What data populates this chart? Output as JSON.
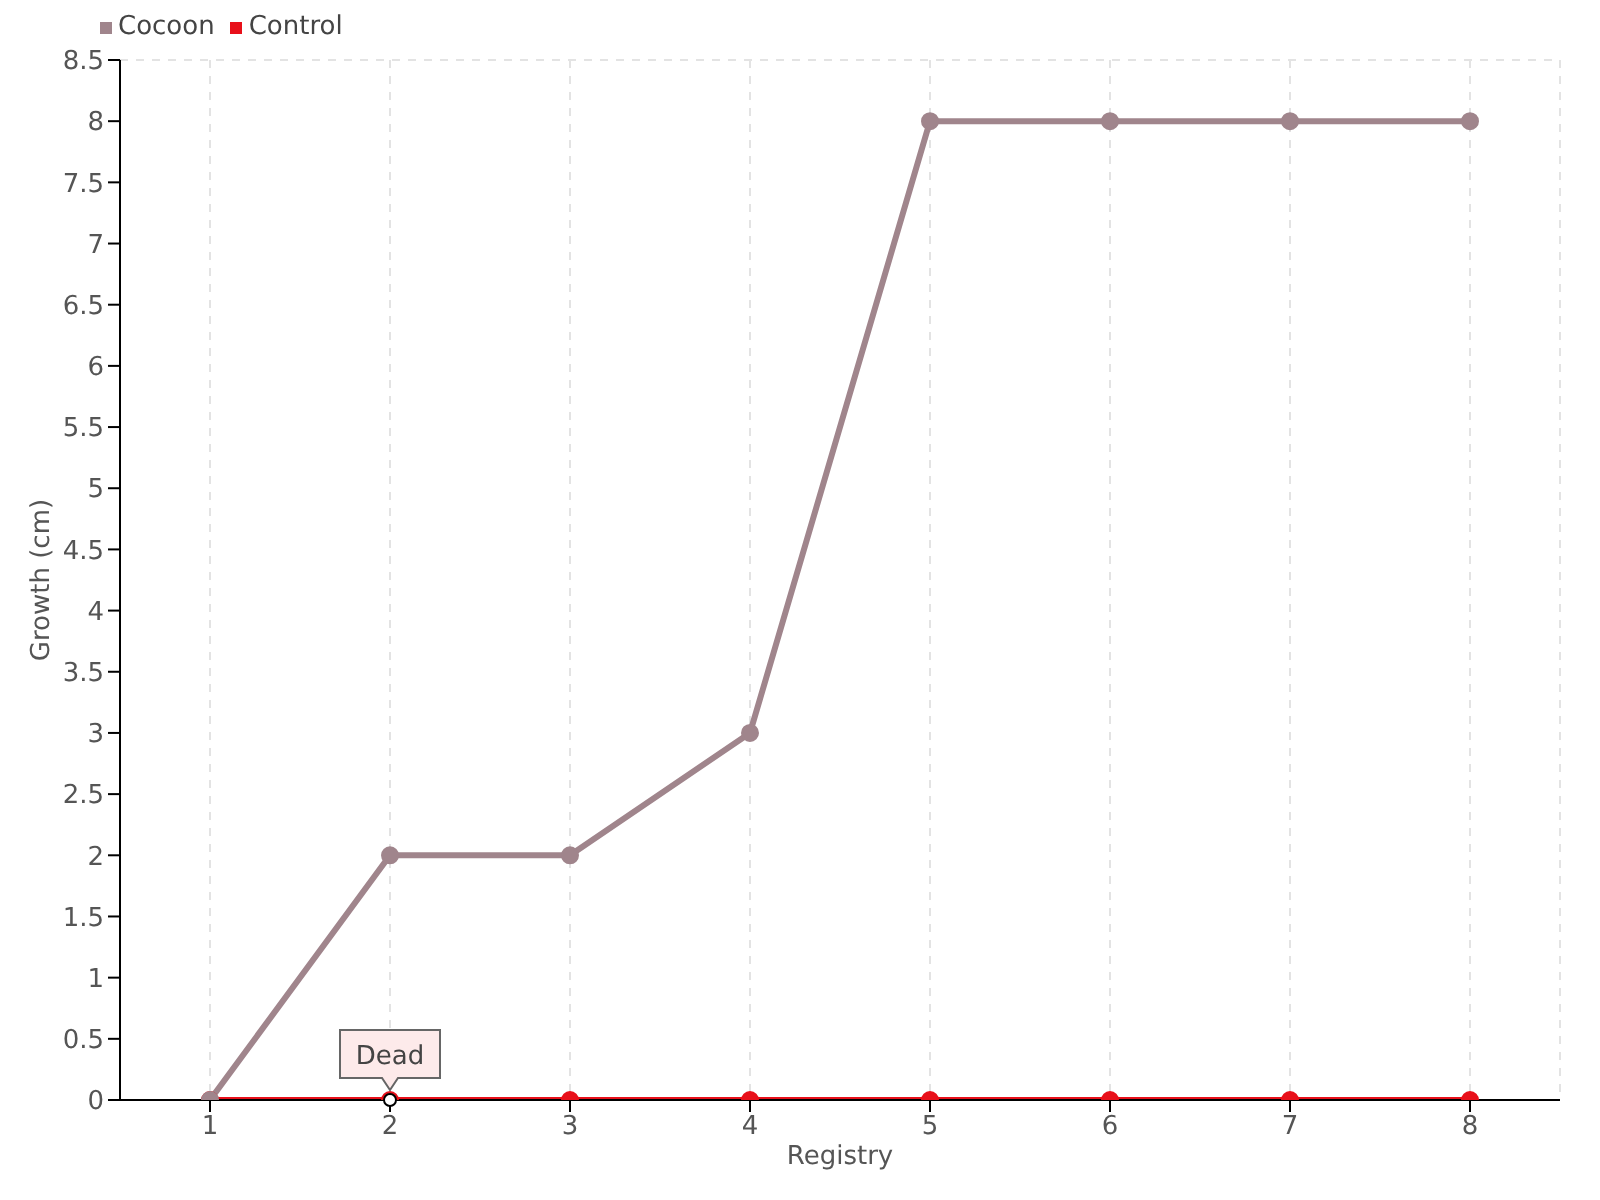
{
  "chart_data": {
    "type": "line",
    "xlabel": "Registry",
    "ylabel": "Growth (cm)",
    "categories": [
      "1",
      "2",
      "3",
      "4",
      "5",
      "6",
      "7",
      "8"
    ],
    "series": [
      {
        "name": "Cocoon",
        "color": "#a0858c",
        "values": [
          0,
          2,
          2,
          3,
          8,
          8,
          8,
          8
        ]
      },
      {
        "name": "Control",
        "color": "#e8101a",
        "values": [
          0,
          0,
          0,
          0,
          0,
          0,
          0,
          0
        ]
      }
    ],
    "ylim": [
      0,
      8.5
    ],
    "yticks": [
      0,
      0.5,
      1,
      1.5,
      2,
      2.5,
      3,
      3.5,
      4,
      4.5,
      5,
      5.5,
      6,
      6.5,
      7,
      7.5,
      8,
      8.5
    ],
    "grid": true,
    "legend": "top left",
    "marker": "circle",
    "line_style": "solid",
    "annotations": [
      {
        "text": "Dead",
        "x": "2",
        "y": 0
      }
    ]
  }
}
